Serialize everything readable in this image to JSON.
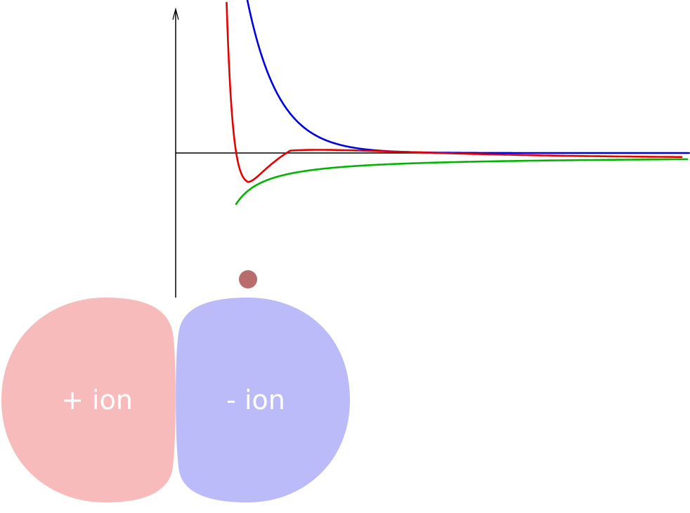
{
  "ions": {
    "positive": {
      "label": "+ ion",
      "color": "#f8bbbb"
    },
    "negative": {
      "label": "- ion",
      "color": "#babbf8"
    }
  },
  "curves": {
    "repulsive": {
      "color": "#0000e6"
    },
    "attractive": {
      "color": "#00b400"
    },
    "net": {
      "color": "#e60000"
    }
  },
  "equilibrium_marker": {
    "color": "#b86c6c"
  },
  "axes": {
    "color": "#000000"
  }
}
